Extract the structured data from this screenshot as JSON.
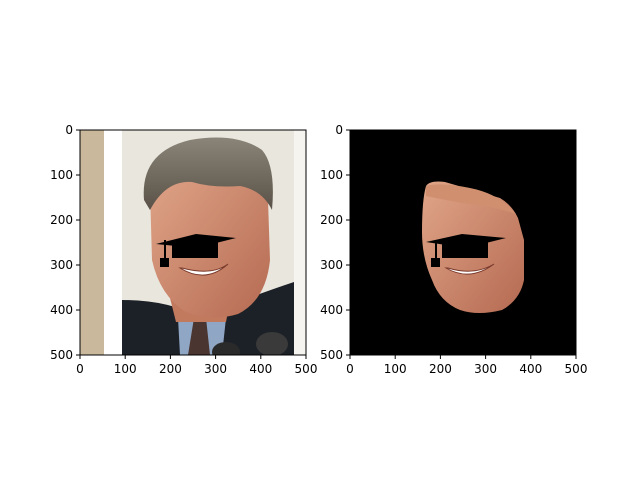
{
  "figure": {
    "background": "#ffffff"
  },
  "chart_data": [
    {
      "type": "image",
      "content": "photo of a smiling man in a dark suit, face partly covered by a black graduation-cap mask",
      "xlim": [
        0,
        500
      ],
      "ylim": [
        500,
        0
      ],
      "xticks": [
        0,
        100,
        200,
        300,
        400,
        500
      ],
      "yticks": [
        0,
        100,
        200,
        300,
        400,
        500
      ],
      "grid": false
    },
    {
      "type": "image",
      "content": "same photo masked to the face region on a black background, graduation-cap mask overlay",
      "xlim": [
        0,
        500
      ],
      "ylim": [
        500,
        0
      ],
      "xticks": [
        0,
        100,
        200,
        300,
        400,
        500
      ],
      "yticks": [
        0,
        100,
        200,
        300,
        400,
        500
      ],
      "grid": false
    }
  ]
}
